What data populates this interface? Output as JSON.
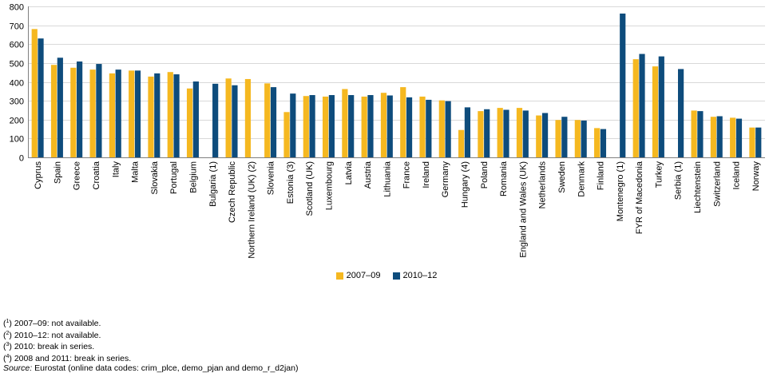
{
  "chart_data": {
    "type": "bar",
    "title": "",
    "xlabel": "",
    "ylabel": "",
    "ylim": [
      0,
      800
    ],
    "yticks": [
      0,
      100,
      200,
      300,
      400,
      500,
      600,
      700,
      800
    ],
    "grid": true,
    "legend_position": "bottom-center",
    "categories": [
      "Cyprus",
      "Spain",
      "Greece",
      "Croatia",
      "Italy",
      "Malta",
      "Slovakia",
      "Portugal",
      "Belgium",
      "Bulgaria (1)",
      "Czech Republic",
      "Northern Ireland (UK) (2)",
      "Slovenia",
      "Estonia (3)",
      "Scotland (UK)",
      "Luxembourg",
      "Latvia",
      "Austria",
      "Lithuania",
      "France",
      "Ireland",
      "Germany",
      "Hungary (4)",
      "Poland",
      "Romania",
      "England and Wales (UK)",
      "Netherlands",
      "Sweden",
      "Denmark",
      "Finland",
      "Montenegro (1)",
      "FYR of Macedonia",
      "Turkey",
      "Serbia (1)",
      "Liechtenstein",
      "Switzerland",
      "Iceland",
      "Norway"
    ],
    "series": [
      {
        "name": "2007–09",
        "color": "#F5B820",
        "values": [
          680,
          490,
          475,
          465,
          445,
          460,
          428,
          452,
          365,
          null,
          418,
          415,
          392,
          240,
          325,
          322,
          362,
          322,
          342,
          372,
          322,
          302,
          145,
          245,
          262,
          262,
          222,
          198,
          198,
          155,
          null,
          520,
          482,
          null,
          248,
          215,
          210,
          158
        ]
      },
      {
        "name": "2010–12",
        "color": "#0E4C7C",
        "values": [
          630,
          528,
          508,
          495,
          465,
          460,
          445,
          440,
          402,
          390,
          382,
          null,
          372,
          338,
          330,
          330,
          330,
          330,
          328,
          318,
          305,
          298,
          265,
          255,
          252,
          248,
          235,
          215,
          195,
          150,
          762,
          548,
          535,
          468,
          245,
          218,
          205,
          158
        ]
      }
    ]
  },
  "footnotes": [
    {
      "mark": "1",
      "text": "2007–09: not available."
    },
    {
      "mark": "2",
      "text": "2010–12: not available."
    },
    {
      "mark": "3",
      "text": "2010: break in series."
    },
    {
      "mark": "4",
      "text": "2008 and 2011: break in series."
    }
  ],
  "source": {
    "label": "Source:",
    "text": "Eurostat (online data codes: crim_plce, demo_pjan and demo_r_d2jan)"
  }
}
